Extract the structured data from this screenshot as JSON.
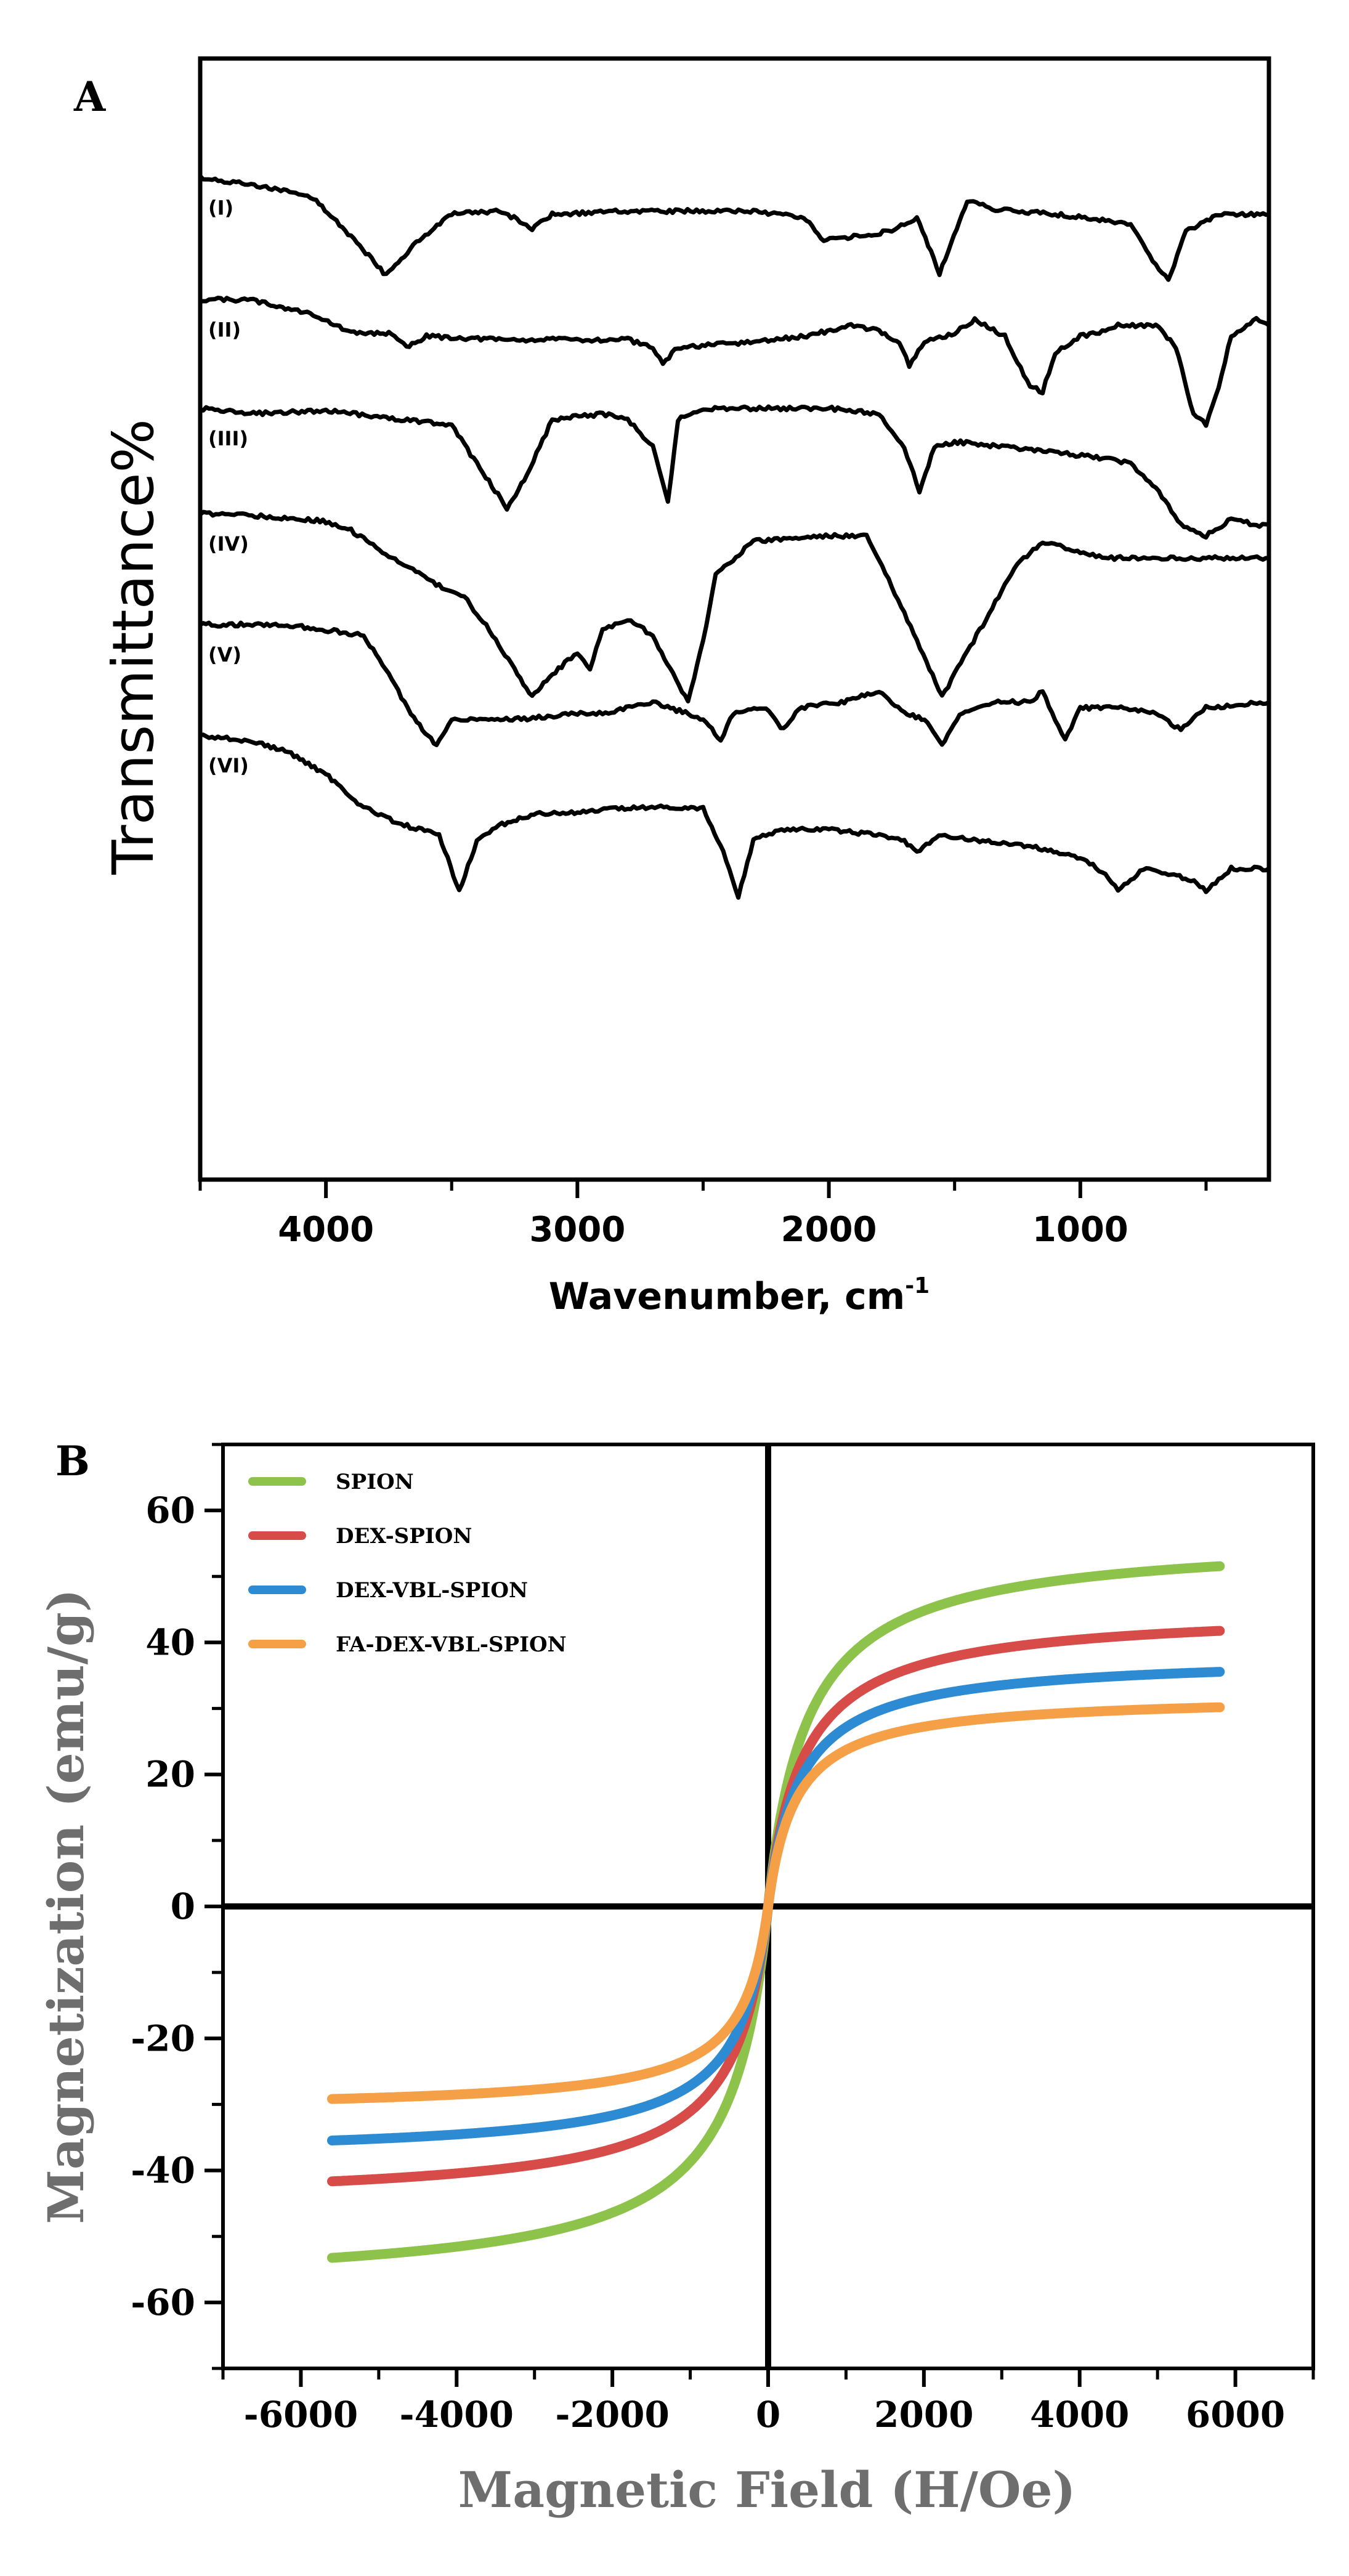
{
  "chart_data": [
    {
      "type": "line",
      "panel": "A",
      "xlabel": "Wavenumber, cm",
      "xlabel_sup": "-1",
      "ylabel": "Transmittance%",
      "xlim": [
        4500,
        250
      ],
      "x_ticks": [
        4000,
        3000,
        2000,
        1000
      ],
      "x_tick_labels": [
        "4000",
        "3000",
        "2000",
        "1000"
      ],
      "series": [
        {
          "name": "(I)",
          "offset": 1.0,
          "points": [
            [
              4500,
              0.02
            ],
            [
              4250,
              0.1
            ],
            [
              4050,
              0.2
            ],
            [
              3900,
              0.55
            ],
            [
              3760,
              0.9
            ],
            [
              3640,
              0.6
            ],
            [
              3500,
              0.35
            ],
            [
              3300,
              0.32
            ],
            [
              3180,
              0.48
            ],
            [
              3100,
              0.35
            ],
            [
              2800,
              0.32
            ],
            [
              2300,
              0.32
            ],
            [
              2100,
              0.38
            ],
            [
              2020,
              0.58
            ],
            [
              1900,
              0.55
            ],
            [
              1750,
              0.5
            ],
            [
              1650,
              0.38
            ],
            [
              1560,
              0.88
            ],
            [
              1480,
              0.42
            ],
            [
              1450,
              0.22
            ],
            [
              1350,
              0.3
            ],
            [
              1100,
              0.35
            ],
            [
              900,
              0.4
            ],
            [
              800,
              0.45
            ],
            [
              700,
              0.8
            ],
            [
              650,
              0.95
            ],
            [
              580,
              0.5
            ],
            [
              450,
              0.35
            ],
            [
              250,
              0.35
            ]
          ]
        },
        {
          "name": "(II)",
          "offset": 2.0,
          "points": [
            [
              4500,
              0.12
            ],
            [
              4300,
              0.12
            ],
            [
              4150,
              0.2
            ],
            [
              4050,
              0.25
            ],
            [
              3900,
              0.42
            ],
            [
              3750,
              0.42
            ],
            [
              3680,
              0.55
            ],
            [
              3600,
              0.45
            ],
            [
              3300,
              0.48
            ],
            [
              2800,
              0.48
            ],
            [
              2700,
              0.55
            ],
            [
              2660,
              0.7
            ],
            [
              2600,
              0.55
            ],
            [
              2300,
              0.5
            ],
            [
              2100,
              0.45
            ],
            [
              1900,
              0.35
            ],
            [
              1800,
              0.4
            ],
            [
              1720,
              0.5
            ],
            [
              1680,
              0.72
            ],
            [
              1620,
              0.5
            ],
            [
              1500,
              0.42
            ],
            [
              1420,
              0.3
            ],
            [
              1380,
              0.35
            ],
            [
              1300,
              0.45
            ],
            [
              1200,
              0.9
            ],
            [
              1150,
              0.95
            ],
            [
              1100,
              0.6
            ],
            [
              1000,
              0.45
            ],
            [
              900,
              0.4
            ],
            [
              850,
              0.35
            ],
            [
              700,
              0.35
            ],
            [
              620,
              0.55
            ],
            [
              550,
              1.15
            ],
            [
              500,
              1.25
            ],
            [
              450,
              0.9
            ],
            [
              400,
              0.45
            ],
            [
              300,
              0.3
            ],
            [
              250,
              0.35
            ]
          ]
        },
        {
          "name": "(III)",
          "offset": 3.0,
          "points": [
            [
              4500,
              0.1
            ],
            [
              4300,
              0.15
            ],
            [
              4000,
              0.12
            ],
            [
              3700,
              0.2
            ],
            [
              3500,
              0.25
            ],
            [
              3400,
              0.6
            ],
            [
              3280,
              1.0
            ],
            [
              3200,
              0.7
            ],
            [
              3100,
              0.2
            ],
            [
              2900,
              0.15
            ],
            [
              2800,
              0.2
            ],
            [
              2700,
              0.45
            ],
            [
              2640,
              0.95
            ],
            [
              2600,
              0.2
            ],
            [
              2500,
              0.1
            ],
            [
              2300,
              0.1
            ],
            [
              2000,
              0.1
            ],
            [
              1800,
              0.15
            ],
            [
              1700,
              0.45
            ],
            [
              1640,
              0.85
            ],
            [
              1580,
              0.45
            ],
            [
              1500,
              0.4
            ],
            [
              1300,
              0.45
            ],
            [
              1100,
              0.5
            ],
            [
              900,
              0.55
            ],
            [
              800,
              0.6
            ],
            [
              700,
              0.82
            ],
            [
              600,
              1.15
            ],
            [
              500,
              1.25
            ],
            [
              400,
              1.1
            ],
            [
              300,
              1.15
            ],
            [
              250,
              1.15
            ]
          ]
        },
        {
          "name": "(IV)",
          "offset": 4.0,
          "points": [
            [
              4500,
              0.05
            ],
            [
              4400,
              0.05
            ],
            [
              4200,
              0.08
            ],
            [
              4000,
              0.12
            ],
            [
              3900,
              0.2
            ],
            [
              3800,
              0.35
            ],
            [
              3700,
              0.5
            ],
            [
              3550,
              0.7
            ],
            [
              3450,
              0.8
            ],
            [
              3350,
              1.1
            ],
            [
              3250,
              1.45
            ],
            [
              3180,
              1.7
            ],
            [
              3100,
              1.5
            ],
            [
              3000,
              1.3
            ],
            [
              2950,
              1.45
            ],
            [
              2900,
              1.1
            ],
            [
              2800,
              1.0
            ],
            [
              2700,
              1.15
            ],
            [
              2620,
              1.5
            ],
            [
              2560,
              1.75
            ],
            [
              2500,
              1.2
            ],
            [
              2450,
              0.6
            ],
            [
              2300,
              0.3
            ],
            [
              2000,
              0.25
            ],
            [
              1850,
              0.25
            ],
            [
              1750,
              0.7
            ],
            [
              1650,
              1.2
            ],
            [
              1550,
              1.7
            ],
            [
              1450,
              1.3
            ],
            [
              1350,
              0.9
            ],
            [
              1250,
              0.5
            ],
            [
              1150,
              0.3
            ],
            [
              1000,
              0.4
            ],
            [
              900,
              0.45
            ],
            [
              700,
              0.45
            ],
            [
              500,
              0.45
            ],
            [
              250,
              0.45
            ]
          ]
        },
        {
          "name": "(V)",
          "offset": 5.0,
          "points": [
            [
              4500,
              0.05
            ],
            [
              4350,
              0.05
            ],
            [
              4200,
              0.05
            ],
            [
              4050,
              0.08
            ],
            [
              3850,
              0.15
            ],
            [
              3750,
              0.5
            ],
            [
              3650,
              0.9
            ],
            [
              3560,
              1.15
            ],
            [
              3500,
              0.9
            ],
            [
              3400,
              0.9
            ],
            [
              3200,
              0.9
            ],
            [
              3000,
              0.85
            ],
            [
              2900,
              0.85
            ],
            [
              2700,
              0.75
            ],
            [
              2500,
              0.9
            ],
            [
              2430,
              1.1
            ],
            [
              2380,
              0.85
            ],
            [
              2250,
              0.8
            ],
            [
              2180,
              1.0
            ],
            [
              2120,
              0.8
            ],
            [
              1950,
              0.75
            ],
            [
              1800,
              0.65
            ],
            [
              1700,
              0.85
            ],
            [
              1620,
              0.9
            ],
            [
              1550,
              1.15
            ],
            [
              1480,
              0.85
            ],
            [
              1350,
              0.75
            ],
            [
              1200,
              0.75
            ],
            [
              1150,
              0.65
            ],
            [
              1100,
              0.9
            ],
            [
              1060,
              1.1
            ],
            [
              1000,
              0.8
            ],
            [
              850,
              0.8
            ],
            [
              700,
              0.85
            ],
            [
              600,
              1.0
            ],
            [
              500,
              0.8
            ],
            [
              250,
              0.75
            ]
          ]
        },
        {
          "name": "(VI)",
          "offset": 6.0,
          "points": [
            [
              4500,
              0.05
            ],
            [
              4300,
              0.1
            ],
            [
              4150,
              0.2
            ],
            [
              4000,
              0.4
            ],
            [
              3850,
              0.7
            ],
            [
              3700,
              0.85
            ],
            [
              3550,
              0.95
            ],
            [
              3470,
              1.45
            ],
            [
              3400,
              1.0
            ],
            [
              3300,
              0.85
            ],
            [
              3150,
              0.75
            ],
            [
              3000,
              0.75
            ],
            [
              2800,
              0.7
            ],
            [
              2500,
              0.7
            ],
            [
              2420,
              1.1
            ],
            [
              2360,
              1.5
            ],
            [
              2300,
              1.0
            ],
            [
              2200,
              0.9
            ],
            [
              2000,
              0.9
            ],
            [
              1800,
              0.95
            ],
            [
              1700,
              1.0
            ],
            [
              1650,
              1.1
            ],
            [
              1550,
              0.95
            ],
            [
              1400,
              1.0
            ],
            [
              1200,
              1.05
            ],
            [
              1000,
              1.15
            ],
            [
              900,
              1.3
            ],
            [
              850,
              1.45
            ],
            [
              750,
              1.25
            ],
            [
              650,
              1.3
            ],
            [
              560,
              1.35
            ],
            [
              500,
              1.45
            ],
            [
              400,
              1.25
            ],
            [
              250,
              1.25
            ]
          ]
        }
      ]
    },
    {
      "type": "line",
      "panel": "B",
      "xlabel": "Magnetic Field (H/Oe)",
      "ylabel": "Magnetization (emu/g)",
      "xlim": [
        -7000,
        7000
      ],
      "ylim": [
        -70,
        70
      ],
      "x_ticks": [
        -6000,
        -4000,
        -2000,
        0,
        2000,
        4000,
        6000
      ],
      "x_tick_labels": [
        "-6000",
        "-4000",
        "-2000",
        "0",
        "2000",
        "4000",
        "6000"
      ],
      "y_ticks": [
        -60,
        -40,
        -20,
        0,
        20,
        40,
        60
      ],
      "y_tick_labels": [
        "-60",
        "-40",
        "-20",
        "0",
        "20",
        "40",
        "60"
      ],
      "legend_position": "top-left",
      "series": [
        {
          "name": "SPION",
          "color": "#8dc34a",
          "ms_pos": 56,
          "ms_neg": 58,
          "h_half": 500
        },
        {
          "name": "DEX-SPION",
          "color": "#d74c48",
          "ms_pos": 45,
          "ms_neg": 45,
          "h_half": 450
        },
        {
          "name": "DEX-VBL-SPION",
          "color": "#2d8bd4",
          "ms_pos": 38,
          "ms_neg": 38,
          "h_half": 400
        },
        {
          "name": "FA-DEX-VBL-SPION",
          "color": "#f5a047",
          "ms_pos": 32,
          "ms_neg": 31,
          "h_half": 350
        }
      ]
    }
  ]
}
